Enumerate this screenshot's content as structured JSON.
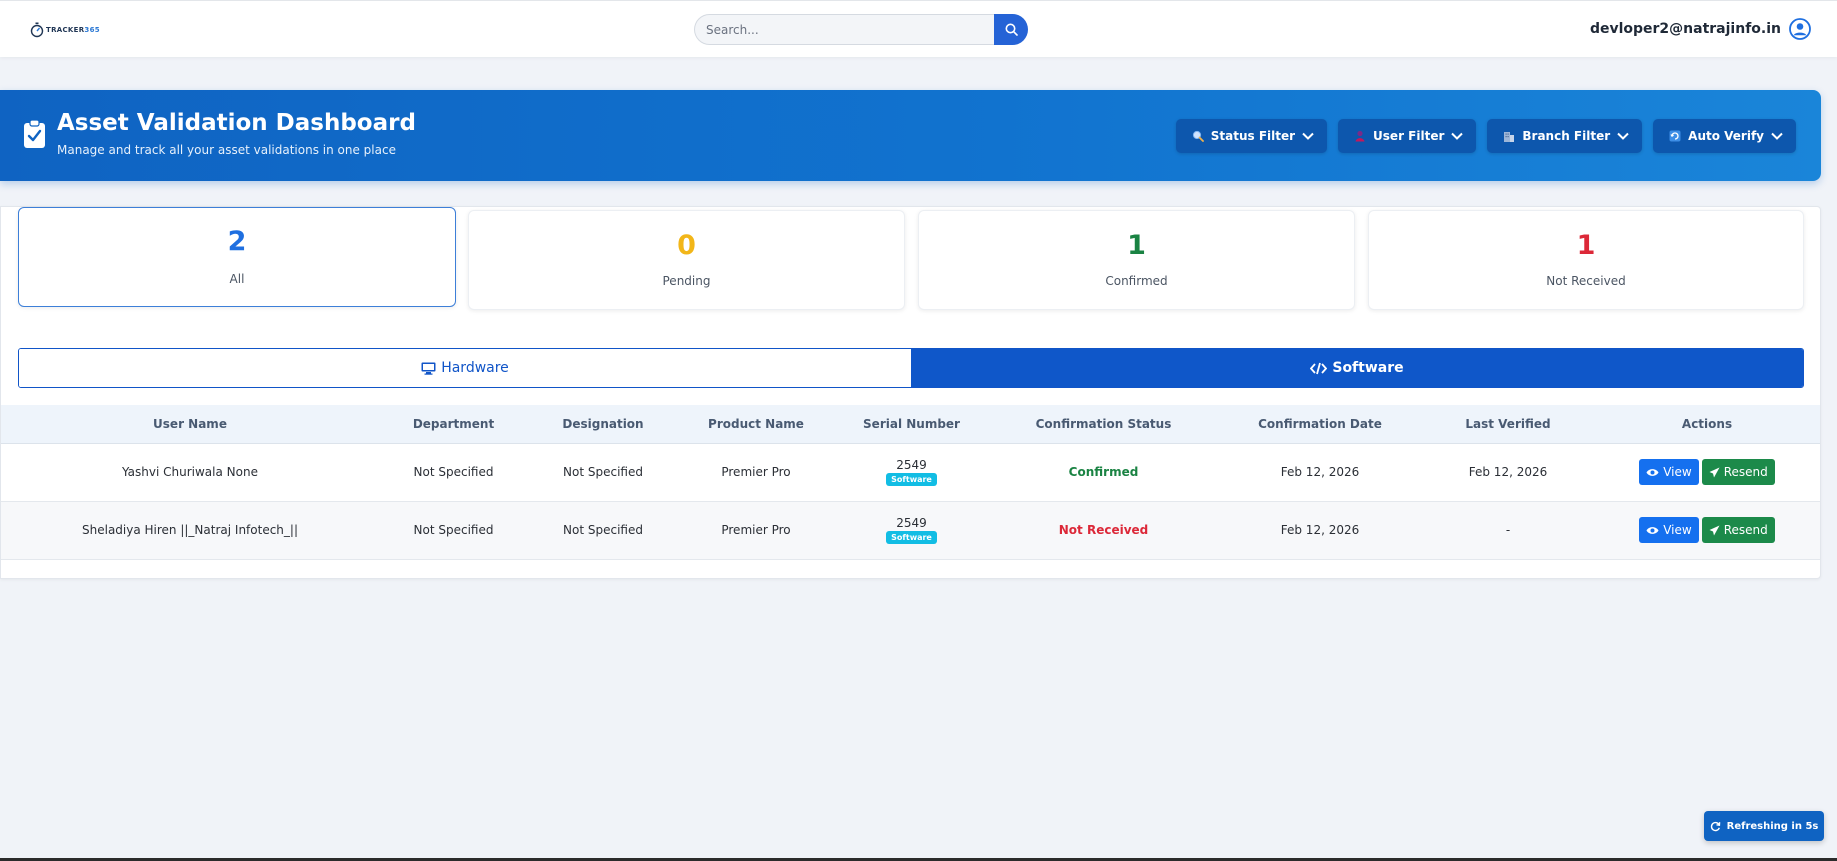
{
  "nav": {
    "logo_text": "TRACKER",
    "logo_accent": "365",
    "search_placeholder": "Search...",
    "user_email": "devloper2@natrajinfo.in"
  },
  "banner": {
    "title": "Asset Validation Dashboard",
    "subtitle": "Manage and track all your asset validations in one place",
    "filters": [
      {
        "label": "Status Filter",
        "icon": "search-icon"
      },
      {
        "label": "User Filter",
        "icon": "user-icon"
      },
      {
        "label": "Branch Filter",
        "icon": "building-icon"
      },
      {
        "label": "Auto Verify",
        "icon": "verify-icon"
      }
    ]
  },
  "stats": [
    {
      "count": "2",
      "label": "All",
      "color": "#1f6fe0"
    },
    {
      "count": "0",
      "label": "Pending",
      "color": "#f2b619"
    },
    {
      "count": "1",
      "label": "Confirmed",
      "color": "#1a8343"
    },
    {
      "count": "1",
      "label": "Not Received",
      "color": "#dc2838"
    }
  ],
  "tabs": {
    "hardware": "Hardware",
    "software": "Software"
  },
  "table": {
    "headers": [
      "User Name",
      "Department",
      "Designation",
      "Product Name",
      "Serial Number",
      "Confirmation Status",
      "Confirmation Date",
      "Last Verified",
      "Actions"
    ],
    "rows": [
      {
        "user_name": "Yashvi Churiwala None",
        "department": "Not Specified",
        "designation": "Not Specified",
        "product": "Premier Pro",
        "serial": "2549",
        "badge": "Software",
        "status": "Confirmed",
        "confirmation_date": "Feb 12, 2026",
        "last_verified": "Feb 12, 2026"
      },
      {
        "user_name": "Sheladiya Hiren ||_Natraj Infotech_||",
        "department": "Not Specified",
        "designation": "Not Specified",
        "product": "Premier Pro",
        "serial": "2549",
        "badge": "Software",
        "status": "Not Received",
        "confirmation_date": "Feb 12, 2026",
        "last_verified": "-"
      }
    ],
    "view_label": "View",
    "resend_label": "Resend"
  },
  "refresh": {
    "label": "Refreshing in 5s"
  },
  "colors": {
    "brand": "#0f63c2",
    "confirmed": "#1a8343",
    "not_received": "#dc2838",
    "badge": "#12bde4"
  }
}
